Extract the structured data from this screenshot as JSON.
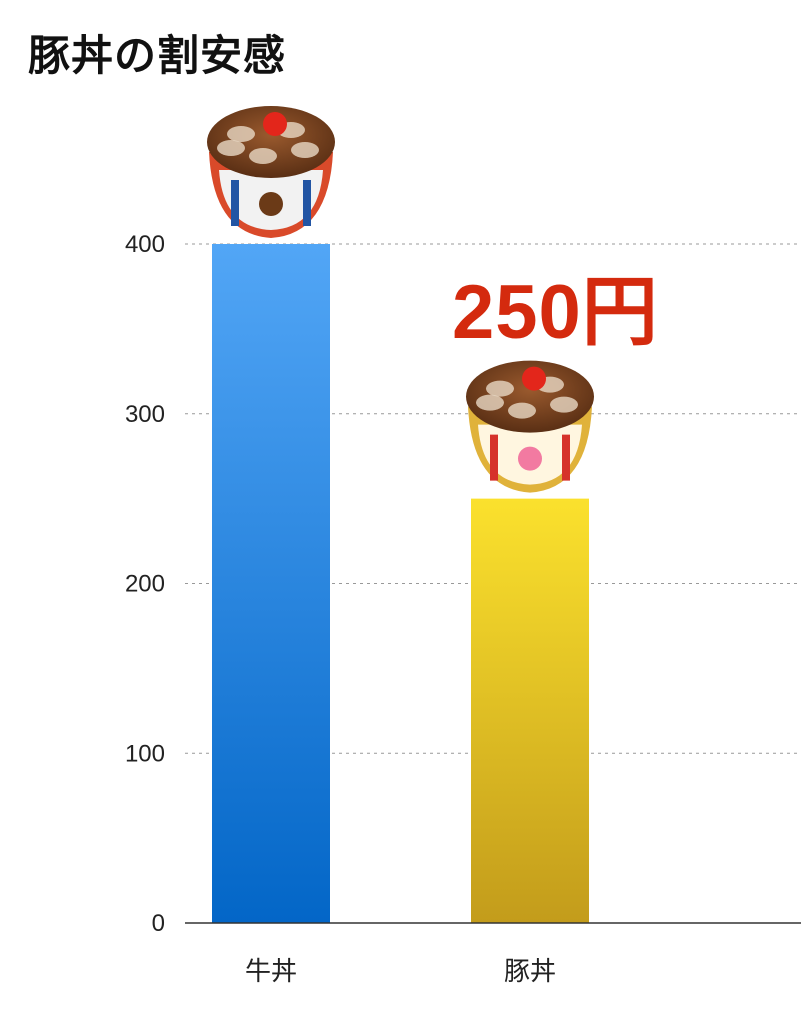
{
  "title": "豚丼の割安感",
  "annotation": {
    "text": "250円",
    "color": "#d42a0e"
  },
  "chart_data": {
    "type": "bar",
    "categories": [
      "牛丼",
      "豚丼"
    ],
    "values": [
      400,
      250
    ],
    "colors": [
      [
        "#52a6f6",
        "#0366c7"
      ],
      [
        "#fbe12d",
        "#c39c1b"
      ]
    ],
    "icons": [
      "beef-bowl-icon",
      "pork-bowl-icon"
    ],
    "title": "豚丼の割安感",
    "xlabel": "",
    "ylabel": "",
    "ylim": [
      0,
      400
    ],
    "yticks": [
      0,
      100,
      200,
      300,
      400
    ],
    "grid": true
  }
}
